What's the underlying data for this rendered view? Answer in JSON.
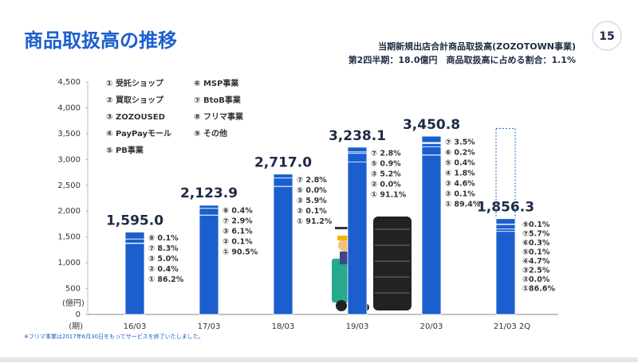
{
  "page_number": "15",
  "chart_data": {
    "type": "bar",
    "title": "商品取扱高の推移",
    "subtitle": [
      "当期新規出店合計商品取扱高(ZOZOTOWN事業)",
      "第2四半期：18.0億円　商品取扱高に占める割合：1.1%"
    ],
    "y_unit": "(億円)",
    "x_unit": "(期)",
    "footnote": "※フリマ事業は2017年6月30日をもってサービスを終了いたしました。",
    "categories": [
      "16/03",
      "17/03",
      "18/03",
      "19/03",
      "20/03",
      "21/03 2Q"
    ],
    "values": [
      1595.0,
      2123.9,
      2717.0,
      3238.1,
      3450.8,
      1856.3
    ],
    "value_labels": [
      "1,595.0",
      "2,123.9",
      "2,717.0",
      "3,238.1",
      "3,450.8",
      "1,856.3"
    ],
    "outline_value": 3600,
    "color": "#1b5fce",
    "ylim": [
      0,
      4500
    ],
    "yticks": [
      0,
      500,
      {
        "value": 1000,
        "label": "1,000"
      },
      {
        "value": 1500,
        "label": "1,500"
      },
      {
        "value": 2000,
        "label": "2,000"
      },
      {
        "value": 2500,
        "label": "2,500"
      },
      {
        "value": 3000,
        "label": "3,000"
      },
      {
        "value": 3500,
        "label": "3,500"
      },
      {
        "value": 4000,
        "label": "4,000"
      },
      {
        "value": 4500,
        "label": "4,500"
      }
    ],
    "legend": [
      "① 受託ショップ",
      "② 買取ショップ",
      "③ ZOZOUSED",
      "④ PayPayモール",
      "⑤ PB事業",
      "⑥ MSP事業",
      "⑦ BtoB事業",
      "⑧ フリマ事業",
      "⑨ その他"
    ],
    "breakdowns": [
      [
        {
          "label": "⑧ 0.1%",
          "value": 0.1
        },
        {
          "label": "⑦ 8.3%",
          "value": 8.3
        },
        {
          "label": "③ 5.0%",
          "value": 5.0
        },
        {
          "label": "② 0.4%",
          "value": 0.4
        },
        {
          "label": "① 86.2%",
          "value": 86.2
        }
      ],
      [
        {
          "label": "⑧ 0.4%",
          "value": 0.4
        },
        {
          "label": "⑦ 2.9%",
          "value": 2.9
        },
        {
          "label": "③ 6.1%",
          "value": 6.1
        },
        {
          "label": "② 0.1%",
          "value": 0.1
        },
        {
          "label": "① 90.5%",
          "value": 90.5
        }
      ],
      [
        {
          "label": "⑦ 2.8%",
          "value": 2.8
        },
        {
          "label": "⑤ 0.0%",
          "value": 0.0
        },
        {
          "label": "③ 5.9%",
          "value": 5.9
        },
        {
          "label": "② 0.1%",
          "value": 0.1
        },
        {
          "label": "① 91.2%",
          "value": 91.2
        }
      ],
      [
        {
          "label": "⑦ 2.8%",
          "value": 2.8
        },
        {
          "label": "⑤ 0.9%",
          "value": 0.9
        },
        {
          "label": "③ 5.2%",
          "value": 5.2
        },
        {
          "label": "② 0.0%",
          "value": 0.0
        },
        {
          "label": "① 91.1%",
          "value": 91.1
        }
      ],
      [
        {
          "label": "⑦ 3.5%",
          "value": 3.5
        },
        {
          "label": "⑥ 0.2%",
          "value": 0.2
        },
        {
          "label": "⑤ 0.4%",
          "value": 0.4
        },
        {
          "label": "④ 1.8%",
          "value": 1.8
        },
        {
          "label": "③ 4.6%",
          "value": 4.6
        },
        {
          "label": "② 0.1%",
          "value": 0.1
        },
        {
          "label": "① 89.4%",
          "value": 89.4
        }
      ],
      [
        {
          "label": "⑨0.1%",
          "value": 0.1
        },
        {
          "label": "⑦5.7%",
          "value": 5.7
        },
        {
          "label": "⑥0.3%",
          "value": 0.3
        },
        {
          "label": "⑤0.1%",
          "value": 0.1
        },
        {
          "label": "④4.7%",
          "value": 4.7
        },
        {
          "label": "③2.5%",
          "value": 2.5
        },
        {
          "label": "②0.0%",
          "value": 0.0
        },
        {
          "label": "①86.6%",
          "value": 86.6
        }
      ]
    ]
  }
}
